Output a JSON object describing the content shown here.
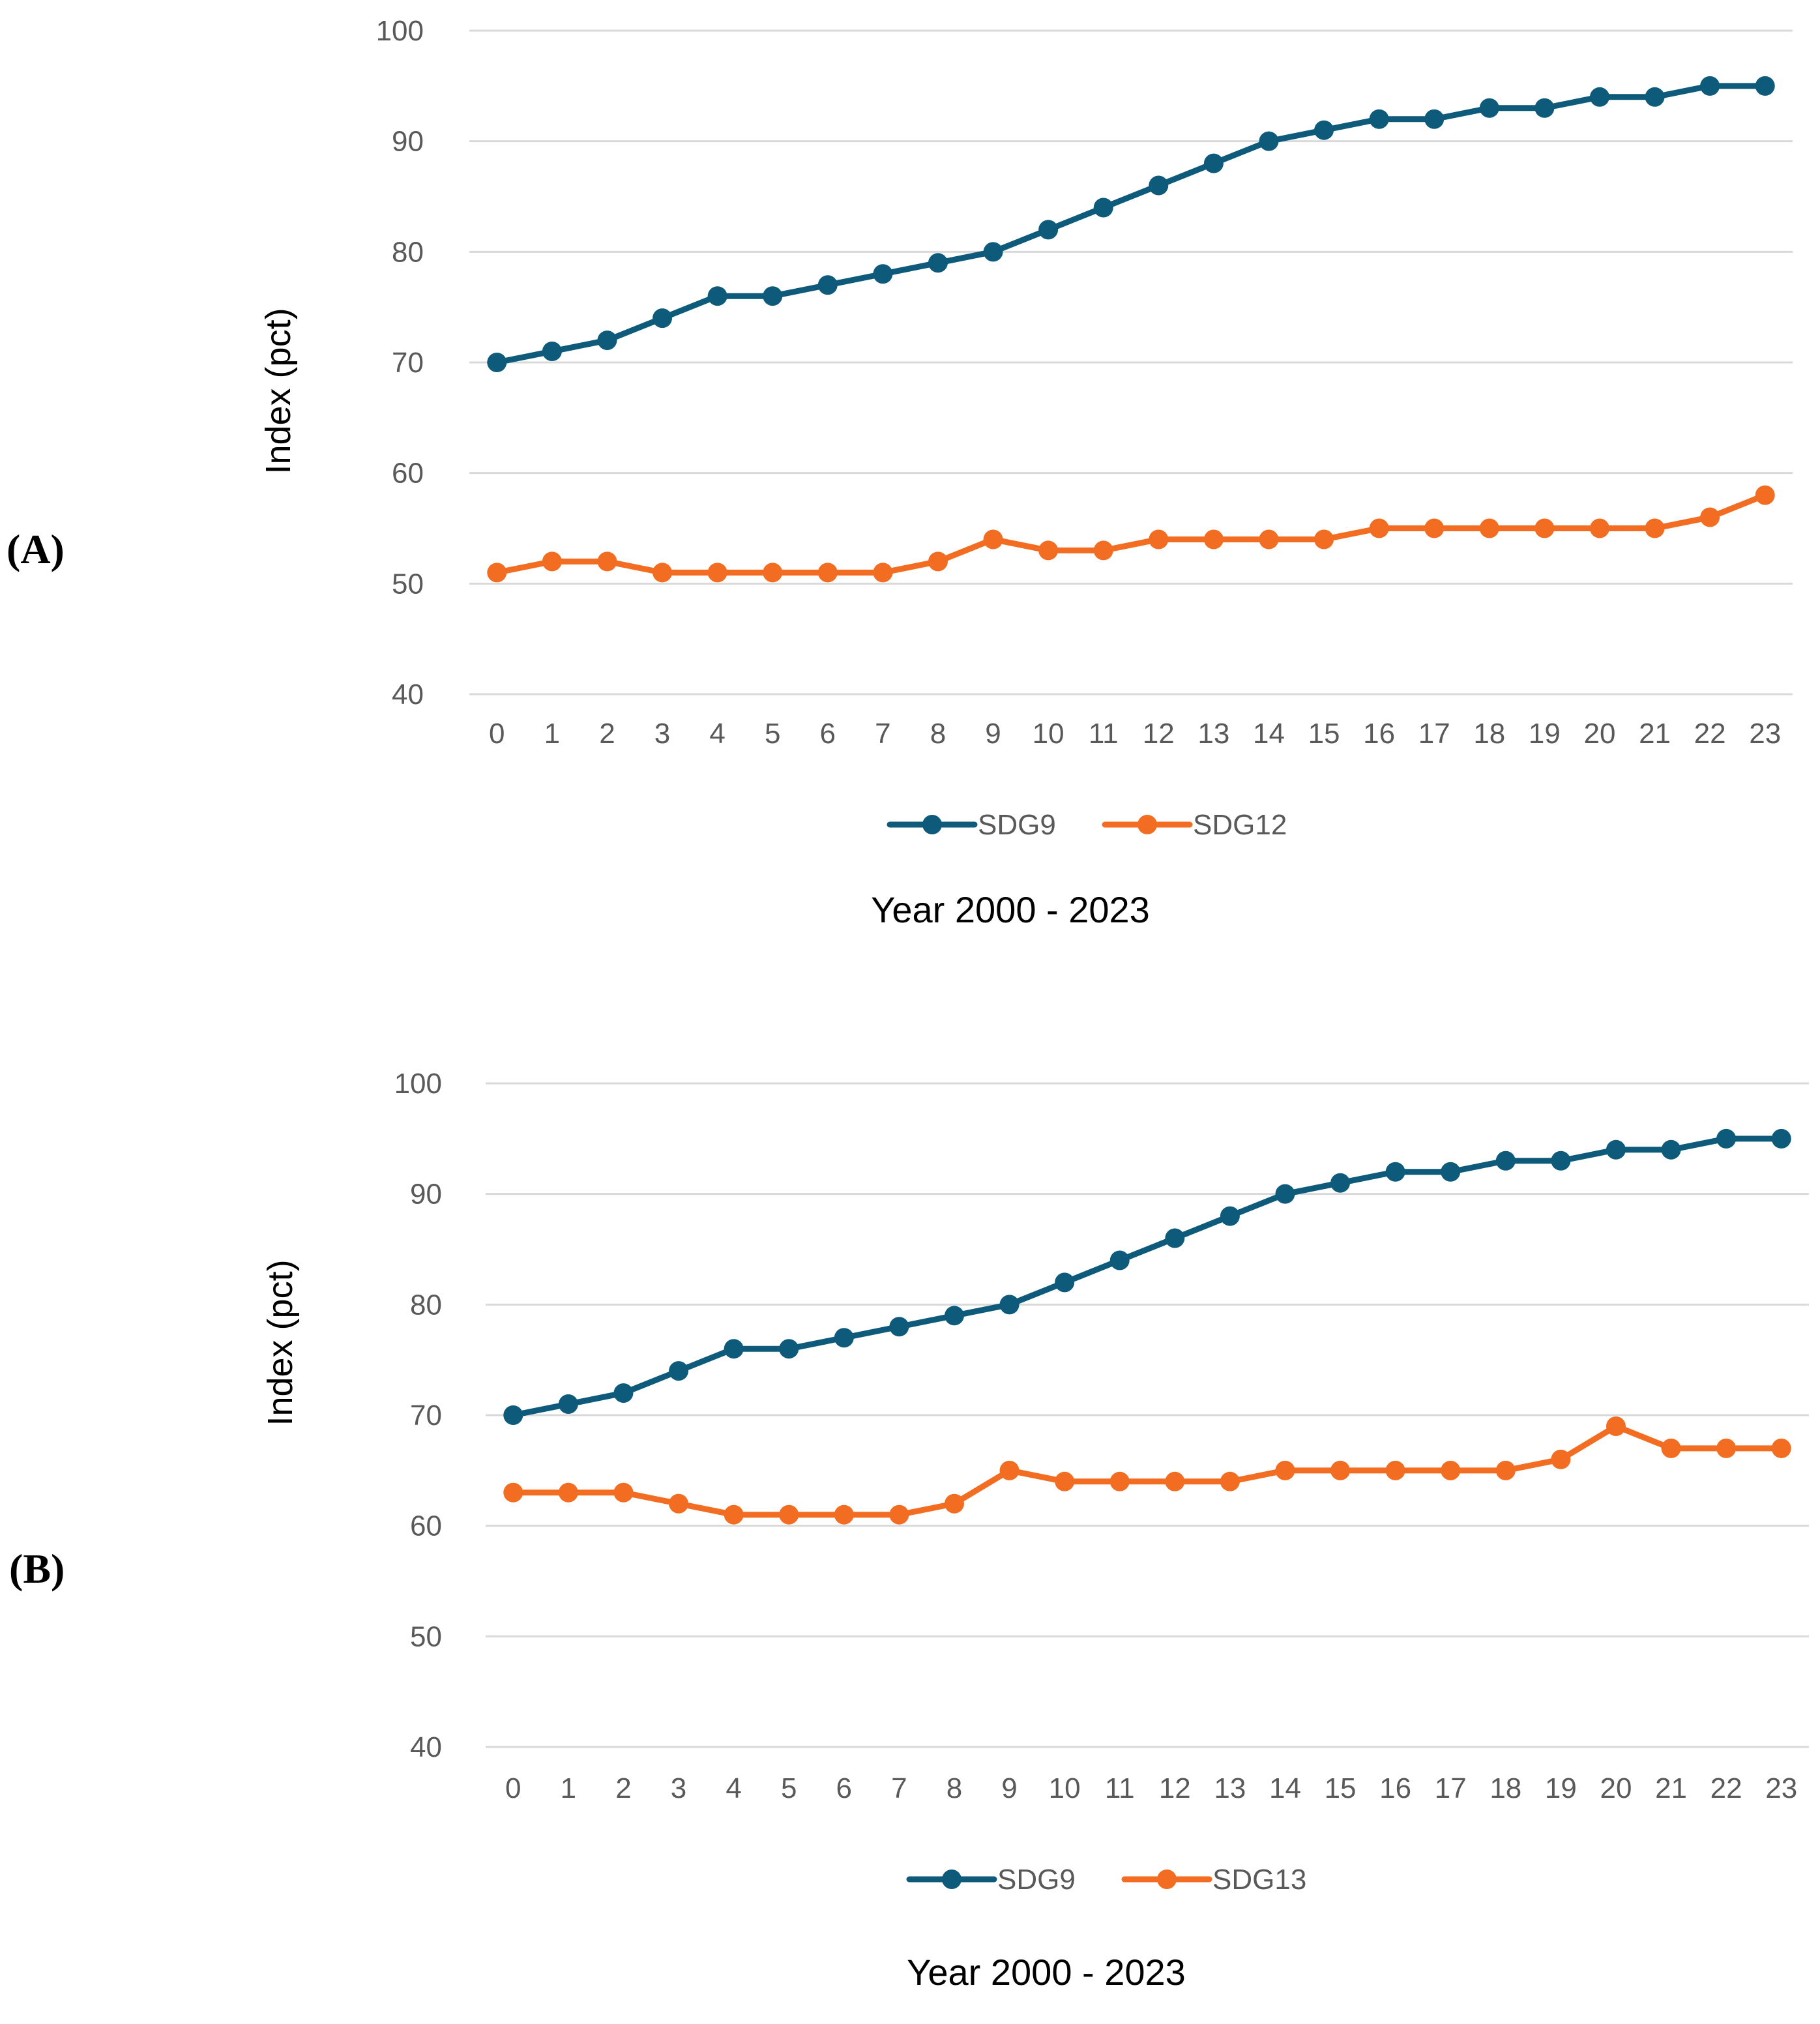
{
  "chart_data": [
    {
      "type": "line",
      "panel_label": "(A)",
      "x": [
        0,
        1,
        2,
        3,
        4,
        5,
        6,
        7,
        8,
        9,
        10,
        11,
        12,
        13,
        14,
        15,
        16,
        17,
        18,
        19,
        20,
        21,
        22,
        23
      ],
      "series": [
        {
          "name": "SDG9",
          "color": "#0d5a7a",
          "values": [
            70,
            71,
            72,
            74,
            76,
            76,
            77,
            78,
            79,
            80,
            82,
            84,
            86,
            88,
            90,
            91,
            92,
            92,
            93,
            93,
            94,
            94,
            95,
            95
          ]
        },
        {
          "name": "SDG12",
          "color": "#f26d21",
          "values": [
            51,
            52,
            52,
            51,
            51,
            51,
            51,
            51,
            52,
            54,
            53,
            53,
            54,
            54,
            54,
            54,
            55,
            55,
            55,
            55,
            55,
            55,
            56,
            58
          ]
        }
      ],
      "title": "",
      "xlabel": "Year 2000 - 2023",
      "ylabel": "Index (pct)",
      "ylim": [
        40,
        100
      ],
      "yticks": [
        40,
        50,
        60,
        70,
        80,
        90,
        100
      ],
      "grid": true,
      "legend": "bottom-center"
    },
    {
      "type": "line",
      "panel_label": "(B)",
      "x": [
        0,
        1,
        2,
        3,
        4,
        5,
        6,
        7,
        8,
        9,
        10,
        11,
        12,
        13,
        14,
        15,
        16,
        17,
        18,
        19,
        20,
        21,
        22,
        23
      ],
      "series": [
        {
          "name": "SDG9",
          "color": "#0d5a7a",
          "values": [
            70,
            71,
            72,
            74,
            76,
            76,
            77,
            78,
            79,
            80,
            82,
            84,
            86,
            88,
            90,
            91,
            92,
            92,
            93,
            93,
            94,
            94,
            95,
            95
          ]
        },
        {
          "name": "SDG13",
          "color": "#f26d21",
          "values": [
            63,
            63,
            63,
            62,
            61,
            61,
            61,
            61,
            62,
            65,
            64,
            64,
            64,
            64,
            65,
            65,
            65,
            65,
            65,
            66,
            69,
            67,
            67,
            67
          ]
        }
      ],
      "title": "",
      "xlabel": "Year 2000 - 2023",
      "ylabel": "Index (pct)",
      "ylim": [
        40,
        100
      ],
      "yticks": [
        40,
        50,
        60,
        70,
        80,
        90,
        100
      ],
      "grid": true,
      "legend": "bottom-center"
    }
  ]
}
